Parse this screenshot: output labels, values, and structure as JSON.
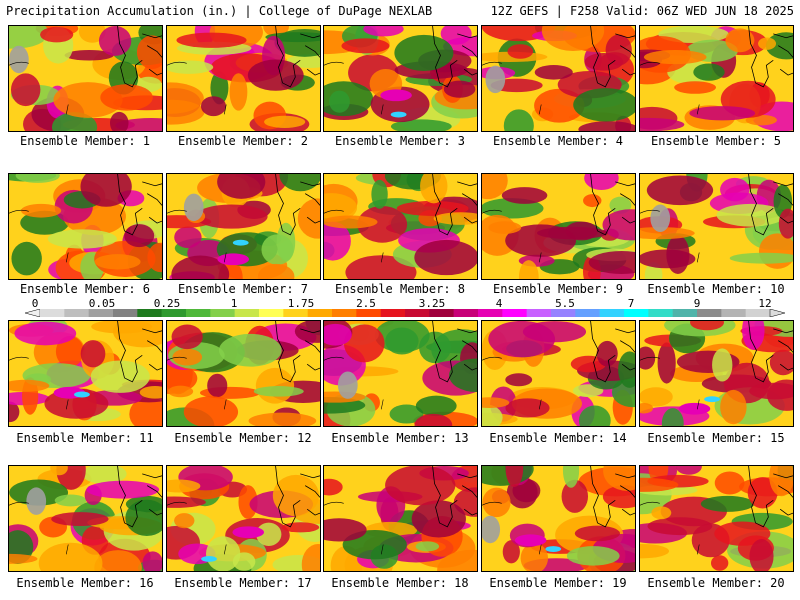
{
  "header": {
    "left": "Precipitation Accumulation (in.) | College of DuPage NEXLAB",
    "right": "12Z GEFS | F258 Valid: 06Z WED JUN 18 2025"
  },
  "members": [
    {
      "label": "Ensemble Member: 1"
    },
    {
      "label": "Ensemble Member: 2"
    },
    {
      "label": "Ensemble Member: 3"
    },
    {
      "label": "Ensemble Member: 4"
    },
    {
      "label": "Ensemble Member: 5"
    },
    {
      "label": "Ensemble Member: 6"
    },
    {
      "label": "Ensemble Member: 7"
    },
    {
      "label": "Ensemble Member: 8"
    },
    {
      "label": "Ensemble Member: 9"
    },
    {
      "label": "Ensemble Member: 10"
    },
    {
      "label": "Ensemble Member: 11"
    },
    {
      "label": "Ensemble Member: 12"
    },
    {
      "label": "Ensemble Member: 13"
    },
    {
      "label": "Ensemble Member: 14"
    },
    {
      "label": "Ensemble Member: 15"
    },
    {
      "label": "Ensemble Member: 16"
    },
    {
      "label": "Ensemble Member: 17"
    },
    {
      "label": "Ensemble Member: 18"
    },
    {
      "label": "Ensemble Member: 19"
    },
    {
      "label": "Ensemble Member: 20"
    }
  ],
  "legend": {
    "ticks": [
      "0",
      "0.05",
      "0.25",
      "1",
      "1.75",
      "2.5",
      "3.25",
      "4",
      "5.5",
      "7",
      "9",
      "12"
    ],
    "colors": [
      "#dcdcdc",
      "#bebebe",
      "#a0a0a0",
      "#828282",
      "#1e7a1e",
      "#2f9a2f",
      "#4fb83a",
      "#84d04a",
      "#c8e64a",
      "#ffff55",
      "#ffd21c",
      "#ffa800",
      "#ff7f00",
      "#ff4a00",
      "#e6141e",
      "#c80a32",
      "#a0003c",
      "#c80078",
      "#e600b4",
      "#ff00ff",
      "#c860ff",
      "#9682ff",
      "#64a0ff",
      "#32d2ff",
      "#00ffff",
      "#32dcc8",
      "#50b4aa",
      "#8c8c8c",
      "#b4b4b4",
      "#d2d2d2"
    ]
  }
}
